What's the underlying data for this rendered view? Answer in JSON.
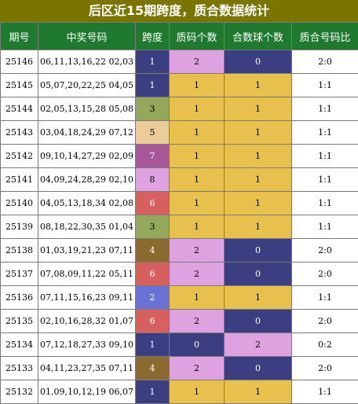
{
  "title": "后区近15期跨度，质合数据统计",
  "headers": [
    "期号",
    "中奖号码",
    "跨度",
    "质码个数",
    "合数球个数",
    "质合号码比"
  ],
  "colors": {
    "header_bg": "#1f7a2f",
    "title_bg": "#7a7400",
    "span": {
      "1": "#3b3f82",
      "2": "#6b72d6",
      "3": "#93a85a",
      "4": "#8a6a2f",
      "5": "#e9cc97",
      "6": "#d6605e",
      "7": "#a8569a",
      "8": "#dea2e0"
    },
    "count": {
      "0": "#3b3f82",
      "1": "#e8c04e",
      "2": "#dea2e0"
    }
  },
  "rows": [
    {
      "period": "25146",
      "numbers": "06,11,13,16,22 02,03",
      "span": "1",
      "prime": "2",
      "composite": "0",
      "ratio": "2:0"
    },
    {
      "period": "25145",
      "numbers": "05,07,20,22,25 04,05",
      "span": "1",
      "prime": "1",
      "composite": "1",
      "ratio": "1:1"
    },
    {
      "period": "25144",
      "numbers": "02,05,13,15,28 05,08",
      "span": "3",
      "prime": "1",
      "composite": "1",
      "ratio": "1:1"
    },
    {
      "period": "25143",
      "numbers": "03,04,18,24,29 07,12",
      "span": "5",
      "prime": "1",
      "composite": "1",
      "ratio": "1:1"
    },
    {
      "period": "25142",
      "numbers": "09,10,14,27,29 02,09",
      "span": "7",
      "prime": "1",
      "composite": "1",
      "ratio": "1:1"
    },
    {
      "period": "25141",
      "numbers": "04,09,24,28,29 02,10",
      "span": "8",
      "prime": "1",
      "composite": "1",
      "ratio": "1:1"
    },
    {
      "period": "25140",
      "numbers": "04,05,13,18,34 02,08",
      "span": "6",
      "prime": "1",
      "composite": "1",
      "ratio": "1:1"
    },
    {
      "period": "25139",
      "numbers": "08,18,22,30,35 01,04",
      "span": "3",
      "prime": "1",
      "composite": "1",
      "ratio": "1:1"
    },
    {
      "period": "25138",
      "numbers": "01,03,19,21,23 07,11",
      "span": "4",
      "prime": "2",
      "composite": "0",
      "ratio": "2:0"
    },
    {
      "period": "25137",
      "numbers": "07,08,09,11,22 05,11",
      "span": "6",
      "prime": "2",
      "composite": "0",
      "ratio": "2:0"
    },
    {
      "period": "25136",
      "numbers": "07,11,15,16,23 09,11",
      "span": "2",
      "prime": "1",
      "composite": "1",
      "ratio": "1:1"
    },
    {
      "period": "25135",
      "numbers": "02,10,16,28,32 01,07",
      "span": "6",
      "prime": "2",
      "composite": "0",
      "ratio": "2:0"
    },
    {
      "period": "25134",
      "numbers": "07,12,18,27,33 09,10",
      "span": "1",
      "prime": "0",
      "composite": "2",
      "ratio": "0:2"
    },
    {
      "period": "25133",
      "numbers": "04,11,23,27,35 07,11",
      "span": "4",
      "prime": "2",
      "composite": "0",
      "ratio": "2:0"
    },
    {
      "period": "25132",
      "numbers": "01,09,10,12,19 06,07",
      "span": "1",
      "prime": "1",
      "composite": "1",
      "ratio": "1:1"
    }
  ]
}
